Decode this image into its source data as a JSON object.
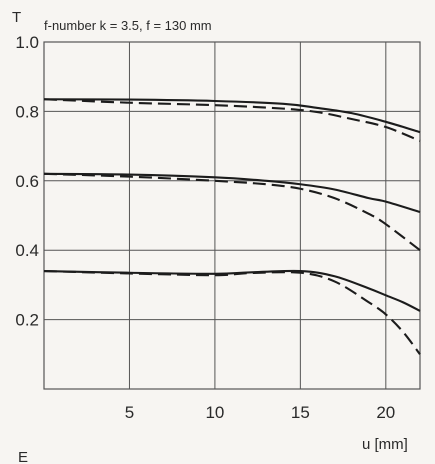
{
  "chart_data": {
    "type": "line",
    "title": "f-number k = 3.5, f = 130 mm",
    "ylabel": "T",
    "xlabel": "u [mm]",
    "xlim": [
      0,
      22
    ],
    "ylim": [
      0,
      1.0
    ],
    "x_ticks": [
      5,
      10,
      15,
      20
    ],
    "y_ticks": [
      0.2,
      0.4,
      0.6,
      0.8,
      1.0
    ],
    "y_tick_labels": [
      "0.2",
      "0.4",
      "0.6",
      "0.8",
      "1.0"
    ],
    "grid": true,
    "corner_letter": "E",
    "colors": {
      "line": "#1c1c1c",
      "grid": "#555555",
      "background": "#f7f5f2"
    },
    "series": [
      {
        "style": "solid",
        "x": [
          0,
          5,
          10,
          14,
          16,
          18,
          20,
          22
        ],
        "y": [
          0.835,
          0.834,
          0.83,
          0.822,
          0.81,
          0.795,
          0.77,
          0.74
        ]
      },
      {
        "style": "dashed",
        "x": [
          0,
          5,
          10,
          14,
          16,
          18,
          20,
          22
        ],
        "y": [
          0.835,
          0.825,
          0.818,
          0.808,
          0.798,
          0.778,
          0.755,
          0.715
        ]
      },
      {
        "style": "solid",
        "x": [
          0,
          5,
          10,
          13,
          15,
          17,
          19,
          20,
          22
        ],
        "y": [
          0.62,
          0.618,
          0.61,
          0.6,
          0.59,
          0.575,
          0.55,
          0.54,
          0.51
        ]
      },
      {
        "style": "dashed",
        "x": [
          0,
          5,
          10,
          13,
          15,
          17,
          19,
          20,
          22
        ],
        "y": [
          0.62,
          0.612,
          0.6,
          0.59,
          0.577,
          0.55,
          0.505,
          0.475,
          0.4
        ]
      },
      {
        "style": "solid",
        "x": [
          0,
          5,
          10,
          12,
          15,
          17,
          19,
          20,
          21,
          22
        ],
        "y": [
          0.34,
          0.335,
          0.332,
          0.336,
          0.34,
          0.325,
          0.29,
          0.27,
          0.25,
          0.225
        ]
      },
      {
        "style": "dashed",
        "x": [
          0,
          5,
          10,
          12,
          15,
          17,
          19,
          20,
          21,
          22
        ],
        "y": [
          0.34,
          0.333,
          0.328,
          0.334,
          0.335,
          0.31,
          0.25,
          0.215,
          0.165,
          0.1
        ]
      }
    ]
  }
}
